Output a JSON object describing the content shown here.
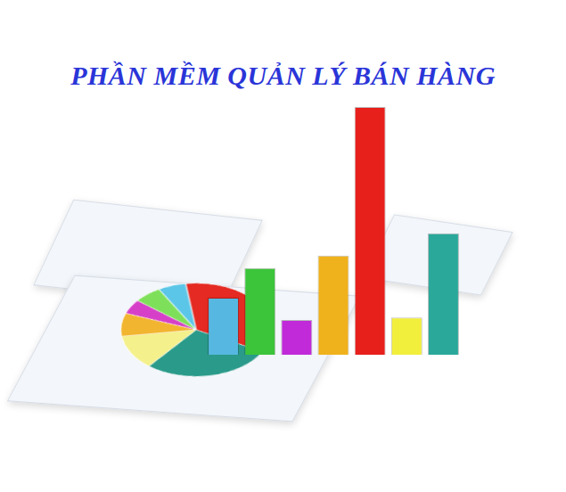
{
  "title": "PHẦN MỀM QUẢN LÝ BÁN HÀNG",
  "chart_data": [
    {
      "type": "bar",
      "categories": [
        null,
        null,
        null,
        null,
        null,
        null,
        null
      ],
      "values": [
        23,
        35,
        14,
        40,
        100,
        15,
        49
      ],
      "colors": [
        "#56b8e0",
        "#3cc43a",
        "#c02ad8",
        "#f0b21c",
        "#e8201c",
        "#f2ee3c",
        "#2aa89a"
      ],
      "ylim": [
        0,
        100
      ],
      "grid": false,
      "tick_labels": false
    },
    {
      "type": "pie",
      "values": [
        35,
        28,
        12,
        8,
        5,
        6,
        6
      ],
      "colors": [
        "#e42a22",
        "#2a9a8a",
        "#f4f08c",
        "#f2b530",
        "#d640c8",
        "#7ee05a",
        "#5cc6e8"
      ]
    }
  ]
}
